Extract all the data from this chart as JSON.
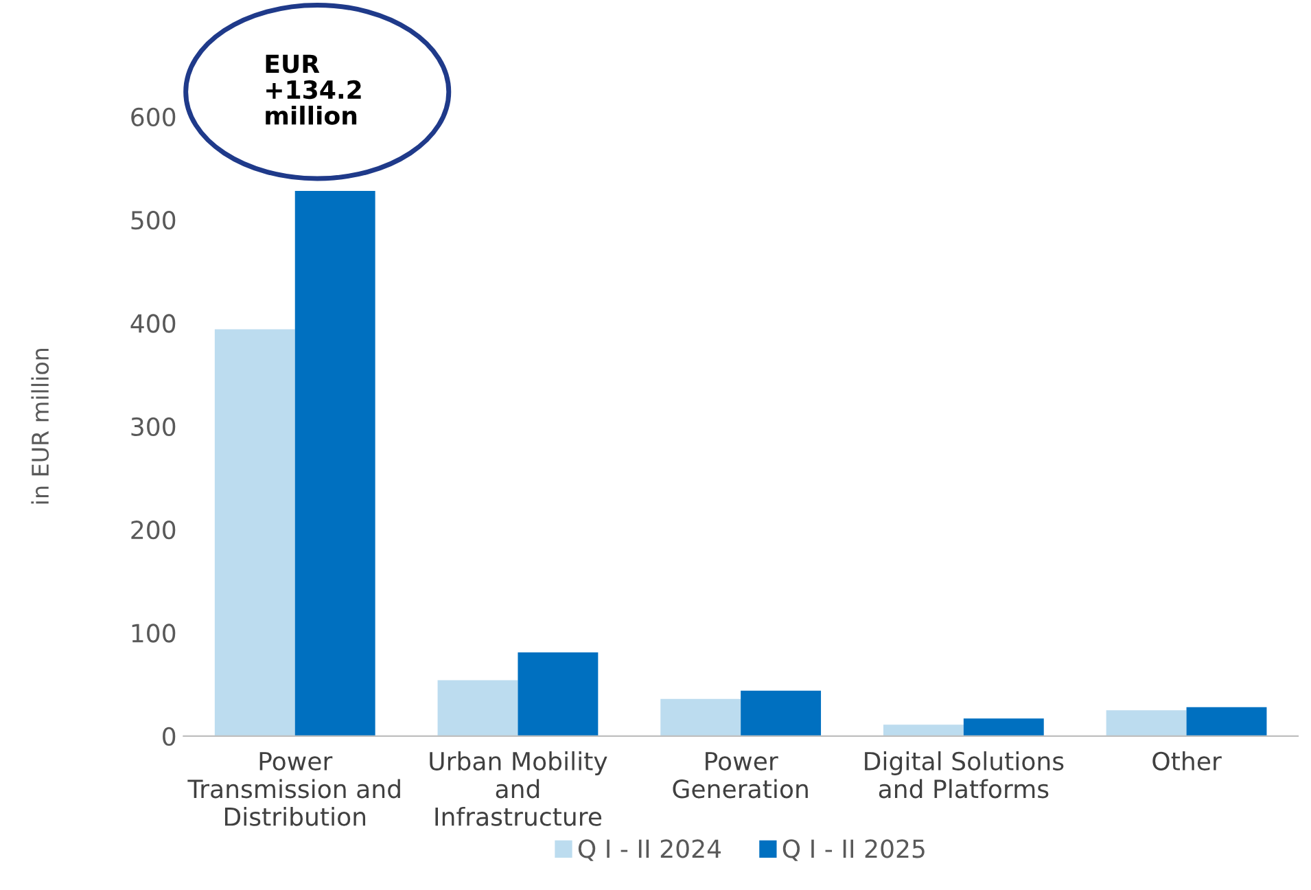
{
  "chart_data": {
    "type": "bar",
    "ylabel": "in EUR million",
    "categories": [
      "Power\nTransmission and\nDistribution",
      "Urban Mobility\nand\nInfrastructure",
      "Power\nGeneration",
      "Digital Solutions\nand Platforms",
      "Other"
    ],
    "series": [
      {
        "name": "Q I - II 2024",
        "color": "#bcdcef",
        "values": [
          394,
          54,
          36,
          11,
          25
        ]
      },
      {
        "name": "Q I - II 2025",
        "color": "#0070c0",
        "values": [
          528,
          81,
          44,
          17,
          28
        ]
      }
    ],
    "ylim": [
      0,
      600
    ],
    "yticks": [
      0,
      100,
      200,
      300,
      400,
      500,
      600
    ],
    "annotations": [
      "EUR\n+134.2\nmillion"
    ],
    "grid": false,
    "legend": "bottom"
  }
}
